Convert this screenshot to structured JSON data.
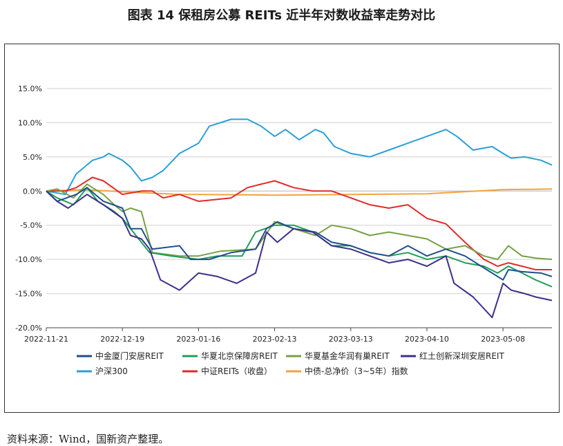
{
  "title": "图表 14  保租房公募 REITs 近半年对数收益率走势对比",
  "source": "资料来源：Wind，国新资产整理。",
  "chart_data": {
    "type": "line",
    "title": "图表 14  保租房公募 REITs 近半年对数收益率走势对比",
    "xlabel": "",
    "ylabel": "",
    "ylim": [
      -20,
      15
    ],
    "yticks": [
      -20,
      -15,
      -10,
      -5,
      0,
      5,
      10,
      15
    ],
    "ytick_labels": [
      "-20.0%",
      "-15.0%",
      "-10.0%",
      "-5.0%",
      "0.0%",
      "5.0%",
      "10.0%",
      "15.0%"
    ],
    "xlim": [
      "2022-11-21",
      "2023-05-26"
    ],
    "xtick_labels": [
      "2022-11-21",
      "2022-12-19",
      "2023-01-16",
      "2023-02-13",
      "2023-03-13",
      "2023-04-10",
      "2023-05-08"
    ],
    "grid": "horizontal",
    "legend_position": "bottom",
    "series": [
      {
        "name": "中金厦门安居REIT",
        "color": "#1f4e8c",
        "points": [
          [
            "2022-11-21",
            0
          ],
          [
            "2022-11-25",
            -1.5
          ],
          [
            "2022-12-02",
            -0.5
          ],
          [
            "2022-12-06",
            0.5
          ],
          [
            "2022-12-12",
            -1.5
          ],
          [
            "2022-12-19",
            -2.5
          ],
          [
            "2022-12-22",
            -5.5
          ],
          [
            "2022-12-26",
            -5.5
          ],
          [
            "2022-12-30",
            -8.5
          ],
          [
            "2023-01-09",
            -8.0
          ],
          [
            "2023-01-13",
            -10.0
          ],
          [
            "2023-01-20",
            -10.0
          ],
          [
            "2023-01-28",
            -9.0
          ],
          [
            "2023-02-06",
            -8.5
          ],
          [
            "2023-02-10",
            -5.5
          ],
          [
            "2023-02-14",
            -4.5
          ],
          [
            "2023-02-20",
            -5.5
          ],
          [
            "2023-02-28",
            -6.0
          ],
          [
            "2023-03-06",
            -7.5
          ],
          [
            "2023-03-13",
            -8.0
          ],
          [
            "2023-03-20",
            -9.0
          ],
          [
            "2023-03-27",
            -9.5
          ],
          [
            "2023-04-03",
            -8.0
          ],
          [
            "2023-04-10",
            -9.5
          ],
          [
            "2023-04-17",
            -8.5
          ],
          [
            "2023-04-24",
            -9.5
          ],
          [
            "2023-05-04",
            -12.0
          ],
          [
            "2023-05-08",
            -13.0
          ],
          [
            "2023-05-10",
            -11.5
          ],
          [
            "2023-05-15",
            -11.8
          ],
          [
            "2023-05-22",
            -12.0
          ],
          [
            "2023-05-26",
            -12.5
          ]
        ]
      },
      {
        "name": "华夏北京保障房REIT",
        "color": "#1e9e58",
        "points": [
          [
            "2022-11-21",
            0
          ],
          [
            "2022-11-25",
            -1.0
          ],
          [
            "2022-12-01",
            -2.0
          ],
          [
            "2022-12-06",
            0.5
          ],
          [
            "2022-12-10",
            -1.5
          ],
          [
            "2022-12-16",
            -3.0
          ],
          [
            "2022-12-19",
            -4.0
          ],
          [
            "2022-12-23",
            -6.0
          ],
          [
            "2022-12-29",
            -9.0
          ],
          [
            "2023-01-06",
            -9.5
          ],
          [
            "2023-01-16",
            -10.0
          ],
          [
            "2023-01-23",
            -9.5
          ],
          [
            "2023-02-01",
            -9.5
          ],
          [
            "2023-02-06",
            -6.0
          ],
          [
            "2023-02-13",
            -5.0
          ],
          [
            "2023-02-20",
            -5.0
          ],
          [
            "2023-02-27",
            -6.0
          ],
          [
            "2023-03-06",
            -8.0
          ],
          [
            "2023-03-13",
            -8.0
          ],
          [
            "2023-03-20",
            -9.0
          ],
          [
            "2023-03-27",
            -9.5
          ],
          [
            "2023-04-03",
            -9.0
          ],
          [
            "2023-04-10",
            -10.0
          ],
          [
            "2023-04-17",
            -9.5
          ],
          [
            "2023-04-24",
            -10.5
          ],
          [
            "2023-05-01",
            -11.0
          ],
          [
            "2023-05-06",
            -12.0
          ],
          [
            "2023-05-10",
            -11.0
          ],
          [
            "2023-05-15",
            -12.0
          ],
          [
            "2023-05-20",
            -13.0
          ],
          [
            "2023-05-26",
            -14.0
          ]
        ]
      },
      {
        "name": "华夏基金华润有巢REIT",
        "color": "#76a045",
        "points": [
          [
            "2022-11-21",
            0
          ],
          [
            "2022-11-25",
            0.3
          ],
          [
            "2022-12-01",
            -1.0
          ],
          [
            "2022-12-06",
            1.0
          ],
          [
            "2022-12-12",
            -0.5
          ],
          [
            "2022-12-16",
            -2.0
          ],
          [
            "2022-12-19",
            -3.0
          ],
          [
            "2022-12-22",
            -2.5
          ],
          [
            "2022-12-26",
            -3.0
          ],
          [
            "2022-12-30",
            -9.0
          ],
          [
            "2023-01-09",
            -9.5
          ],
          [
            "2023-01-16",
            -9.5
          ],
          [
            "2023-01-24",
            -8.8
          ],
          [
            "2023-02-06",
            -8.5
          ],
          [
            "2023-02-13",
            -4.5
          ],
          [
            "2023-02-20",
            -5.5
          ],
          [
            "2023-02-28",
            -6.5
          ],
          [
            "2023-03-06",
            -5.0
          ],
          [
            "2023-03-13",
            -5.5
          ],
          [
            "2023-03-20",
            -6.5
          ],
          [
            "2023-03-27",
            -6.0
          ],
          [
            "2023-04-03",
            -6.5
          ],
          [
            "2023-04-10",
            -7.0
          ],
          [
            "2023-04-17",
            -8.5
          ],
          [
            "2023-04-24",
            -8.0
          ],
          [
            "2023-05-01",
            -9.5
          ],
          [
            "2023-05-06",
            -10.0
          ],
          [
            "2023-05-10",
            -8.0
          ],
          [
            "2023-05-15",
            -9.5
          ],
          [
            "2023-05-20",
            -9.8
          ],
          [
            "2023-05-26",
            -10.0
          ]
        ]
      },
      {
        "name": "红土创新深圳安居REIT",
        "color": "#3b2f8c",
        "points": [
          [
            "2022-11-21",
            0
          ],
          [
            "2022-11-25",
            -1.5
          ],
          [
            "2022-11-29",
            -2.5
          ],
          [
            "2022-12-06",
            -0.5
          ],
          [
            "2022-12-12",
            -2.0
          ],
          [
            "2022-12-19",
            -4.0
          ],
          [
            "2022-12-22",
            -6.5
          ],
          [
            "2022-12-26",
            -7.0
          ],
          [
            "2022-12-29",
            -8.5
          ],
          [
            "2023-01-02",
            -13.0
          ],
          [
            "2023-01-09",
            -14.5
          ],
          [
            "2023-01-16",
            -12.0
          ],
          [
            "2023-01-23",
            -12.5
          ],
          [
            "2023-01-30",
            -13.5
          ],
          [
            "2023-02-06",
            -12.0
          ],
          [
            "2023-02-10",
            -6.0
          ],
          [
            "2023-02-14",
            -7.5
          ],
          [
            "2023-02-20",
            -5.5
          ],
          [
            "2023-02-27",
            -6.0
          ],
          [
            "2023-03-06",
            -8.0
          ],
          [
            "2023-03-13",
            -8.5
          ],
          [
            "2023-03-20",
            -9.5
          ],
          [
            "2023-03-27",
            -10.5
          ],
          [
            "2023-04-03",
            -10.0
          ],
          [
            "2023-04-10",
            -11.0
          ],
          [
            "2023-04-17",
            -9.5
          ],
          [
            "2023-04-20",
            -13.5
          ],
          [
            "2023-04-27",
            -15.5
          ],
          [
            "2023-05-04",
            -18.5
          ],
          [
            "2023-05-08",
            -13.5
          ],
          [
            "2023-05-11",
            -14.5
          ],
          [
            "2023-05-16",
            -15.0
          ],
          [
            "2023-05-20",
            -15.5
          ],
          [
            "2023-05-26",
            -16.0
          ]
        ]
      },
      {
        "name": "沪深300",
        "color": "#2a9fd8",
        "points": [
          [
            "2022-11-21",
            0
          ],
          [
            "2022-11-28",
            -0.5
          ],
          [
            "2022-12-02",
            2.5
          ],
          [
            "2022-12-08",
            4.5
          ],
          [
            "2022-12-12",
            5.0
          ],
          [
            "2022-12-14",
            5.5
          ],
          [
            "2022-12-19",
            4.5
          ],
          [
            "2022-12-22",
            3.5
          ],
          [
            "2022-12-26",
            1.5
          ],
          [
            "2022-12-30",
            2.0
          ],
          [
            "2023-01-03",
            3.0
          ],
          [
            "2023-01-09",
            5.5
          ],
          [
            "2023-01-16",
            7.0
          ],
          [
            "2023-01-20",
            9.5
          ],
          [
            "2023-01-28",
            10.5
          ],
          [
            "2023-02-03",
            10.5
          ],
          [
            "2023-02-08",
            9.5
          ],
          [
            "2023-02-13",
            8.0
          ],
          [
            "2023-02-17",
            9.0
          ],
          [
            "2023-02-22",
            7.5
          ],
          [
            "2023-02-28",
            9.0
          ],
          [
            "2023-03-03",
            8.5
          ],
          [
            "2023-03-07",
            6.5
          ],
          [
            "2023-03-13",
            5.5
          ],
          [
            "2023-03-20",
            5.0
          ],
          [
            "2023-03-27",
            6.0
          ],
          [
            "2023-04-03",
            7.0
          ],
          [
            "2023-04-10",
            8.0
          ],
          [
            "2023-04-17",
            9.0
          ],
          [
            "2023-04-21",
            8.0
          ],
          [
            "2023-04-27",
            6.0
          ],
          [
            "2023-05-04",
            6.5
          ],
          [
            "2023-05-08",
            5.5
          ],
          [
            "2023-05-11",
            4.8
          ],
          [
            "2023-05-16",
            5.0
          ],
          [
            "2023-05-22",
            4.5
          ],
          [
            "2023-05-26",
            3.8
          ]
        ]
      },
      {
        "name": "中证REITs（收盘）",
        "color": "#e02a2a",
        "points": [
          [
            "2022-11-21",
            0
          ],
          [
            "2022-11-28",
            0
          ],
          [
            "2022-12-02",
            0.5
          ],
          [
            "2022-12-08",
            2.0
          ],
          [
            "2022-12-12",
            1.5
          ],
          [
            "2022-12-19",
            -0.5
          ],
          [
            "2022-12-26",
            0
          ],
          [
            "2022-12-30",
            0
          ],
          [
            "2023-01-03",
            -1.0
          ],
          [
            "2023-01-09",
            -0.5
          ],
          [
            "2023-01-16",
            -1.5
          ],
          [
            "2023-01-28",
            -1.0
          ],
          [
            "2023-02-03",
            0.5
          ],
          [
            "2023-02-08",
            1.0
          ],
          [
            "2023-02-13",
            1.5
          ],
          [
            "2023-02-20",
            0.5
          ],
          [
            "2023-02-27",
            0
          ],
          [
            "2023-03-06",
            0
          ],
          [
            "2023-03-13",
            -1.0
          ],
          [
            "2023-03-20",
            -2.0
          ],
          [
            "2023-03-27",
            -2.5
          ],
          [
            "2023-04-03",
            -2.0
          ],
          [
            "2023-04-10",
            -4.0
          ],
          [
            "2023-04-17",
            -4.8
          ],
          [
            "2023-04-24",
            -7.5
          ],
          [
            "2023-05-01",
            -10.0
          ],
          [
            "2023-05-06",
            -11.0
          ],
          [
            "2023-05-10",
            -10.5
          ],
          [
            "2023-05-15",
            -11.0
          ],
          [
            "2023-05-20",
            -11.5
          ],
          [
            "2023-05-26",
            -11.5
          ]
        ]
      },
      {
        "name": "中债-总净价（3~5年）指数",
        "color": "#f2a33a",
        "points": [
          [
            "2022-11-21",
            0
          ],
          [
            "2022-12-05",
            0.2
          ],
          [
            "2022-12-19",
            -0.1
          ],
          [
            "2023-01-09",
            -0.5
          ],
          [
            "2023-01-16",
            -0.5
          ],
          [
            "2023-02-13",
            -0.6
          ],
          [
            "2023-03-13",
            -0.5
          ],
          [
            "2023-04-10",
            -0.4
          ],
          [
            "2023-05-08",
            0.2
          ],
          [
            "2023-05-26",
            0.3
          ]
        ]
      }
    ]
  }
}
